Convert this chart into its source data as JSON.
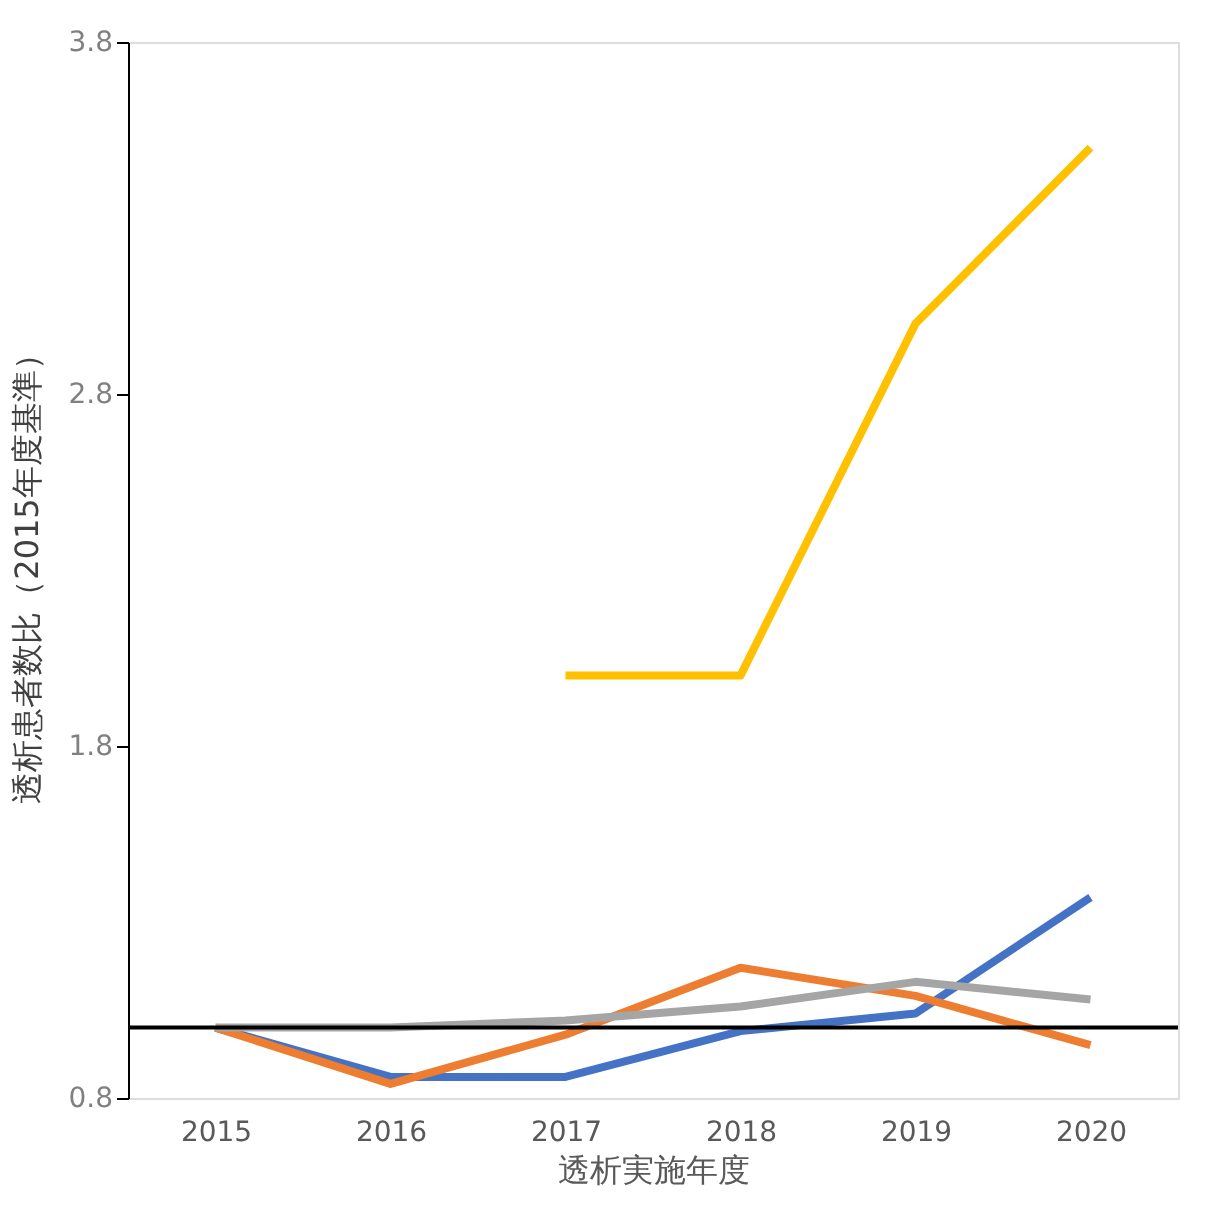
{
  "chart_data": {
    "type": "line",
    "xlabel": "透析実施年度",
    "ylabel": "透析患者数比（2015年度基準）",
    "categories": [
      "2015",
      "2016",
      "2017",
      "2018",
      "2019",
      "2020"
    ],
    "series": [
      {
        "color": "#4472c4",
        "values": [
          1.0,
          0.86,
          0.86,
          0.99,
          1.04,
          1.37
        ]
      },
      {
        "color": "#ed7d31",
        "values": [
          1.0,
          0.84,
          0.98,
          1.17,
          1.09,
          0.95
        ]
      },
      {
        "color": "#a5a5a5",
        "values": [
          1.0,
          1.0,
          1.02,
          1.06,
          1.13,
          1.08
        ]
      },
      {
        "color": "#ffc000",
        "values": [
          null,
          null,
          2.0,
          2.0,
          3.0,
          3.5
        ]
      }
    ],
    "ylim": [
      0.8,
      3.8
    ],
    "yticks": [
      0.8,
      1.8,
      2.8,
      3.8
    ],
    "ref_lines": [
      {
        "axis": "y",
        "value": 1.0,
        "color": "#000000"
      }
    ],
    "grid": false,
    "legend": false,
    "marker": "none",
    "line_style": "solid"
  }
}
